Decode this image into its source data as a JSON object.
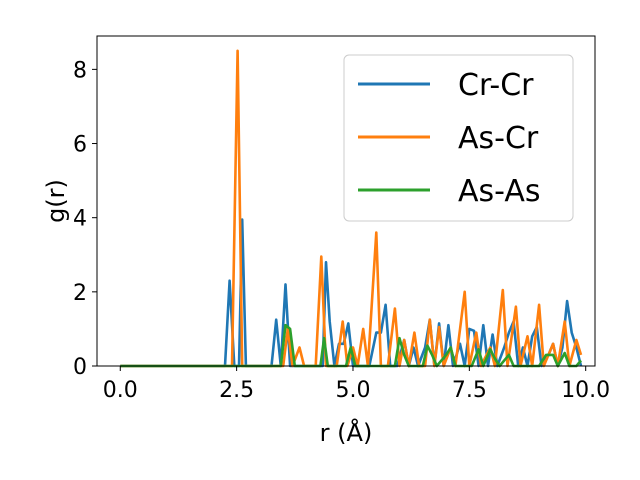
{
  "chart_data": {
    "type": "line",
    "xlabel": "r (Å)",
    "ylabel": "g(r)",
    "xlim": [
      -0.5,
      10.2
    ],
    "ylim": [
      0,
      8.9
    ],
    "xticks": [
      0.0,
      2.5,
      5.0,
      7.5,
      10.0
    ],
    "xtick_labels": [
      "0.0",
      "2.5",
      "5.0",
      "7.5",
      "10.0"
    ],
    "yticks": [
      0,
      2,
      4,
      6,
      8
    ],
    "ytick_labels": [
      "0",
      "2",
      "4",
      "6",
      "8"
    ],
    "grid": false,
    "legend_position": "top-right",
    "series": [
      {
        "name": "Cr-Cr",
        "color": "#1f77b4",
        "points": [
          [
            0.0,
            0
          ],
          [
            2.25,
            0
          ],
          [
            2.35,
            2.3
          ],
          [
            2.45,
            0
          ],
          [
            2.55,
            0
          ],
          [
            2.62,
            3.95
          ],
          [
            2.7,
            0
          ],
          [
            3.25,
            0
          ],
          [
            3.35,
            1.25
          ],
          [
            3.45,
            0
          ],
          [
            3.55,
            2.2
          ],
          [
            3.65,
            0
          ],
          [
            4.35,
            0
          ],
          [
            4.42,
            2.8
          ],
          [
            4.5,
            1.2
          ],
          [
            4.6,
            0
          ],
          [
            4.7,
            0.6
          ],
          [
            4.8,
            0.6
          ],
          [
            4.9,
            1.15
          ],
          [
            5.0,
            0
          ],
          [
            5.35,
            0
          ],
          [
            5.5,
            0.9
          ],
          [
            5.6,
            0.9
          ],
          [
            5.7,
            1.65
          ],
          [
            5.8,
            0
          ],
          [
            5.95,
            0
          ],
          [
            6.1,
            0.7
          ],
          [
            6.2,
            0
          ],
          [
            6.3,
            0.5
          ],
          [
            6.4,
            0
          ],
          [
            6.55,
            0.5
          ],
          [
            6.65,
            1.25
          ],
          [
            6.75,
            0
          ],
          [
            6.85,
            1.15
          ],
          [
            6.95,
            0
          ],
          [
            7.05,
            1.1
          ],
          [
            7.15,
            0
          ],
          [
            7.3,
            0.6
          ],
          [
            7.4,
            0
          ],
          [
            7.5,
            1.0
          ],
          [
            7.6,
            0.95
          ],
          [
            7.7,
            0
          ],
          [
            7.8,
            1.1
          ],
          [
            7.9,
            0
          ],
          [
            8.0,
            0.85
          ],
          [
            8.1,
            0
          ],
          [
            8.25,
            0.5
          ],
          [
            8.35,
            0.9
          ],
          [
            8.45,
            1.2
          ],
          [
            8.55,
            0
          ],
          [
            8.65,
            0.5
          ],
          [
            8.75,
            0
          ],
          [
            8.85,
            0.8
          ],
          [
            8.95,
            1.05
          ],
          [
            9.05,
            0
          ],
          [
            9.2,
            0.3
          ],
          [
            9.3,
            0.6
          ],
          [
            9.4,
            0
          ],
          [
            9.5,
            0.5
          ],
          [
            9.6,
            1.75
          ],
          [
            9.7,
            0.9
          ],
          [
            9.8,
            0.5
          ],
          [
            9.9,
            0
          ]
        ]
      },
      {
        "name": "As-Cr",
        "color": "#ff7f0e",
        "points": [
          [
            0.0,
            0
          ],
          [
            2.25,
            0
          ],
          [
            2.4,
            0
          ],
          [
            2.52,
            8.5
          ],
          [
            2.62,
            0
          ],
          [
            2.7,
            0
          ],
          [
            3.5,
            0
          ],
          [
            3.6,
            1.0
          ],
          [
            3.7,
            0
          ],
          [
            3.85,
            0.5
          ],
          [
            3.95,
            0
          ],
          [
            4.2,
            0
          ],
          [
            4.32,
            2.95
          ],
          [
            4.42,
            0
          ],
          [
            4.65,
            0
          ],
          [
            4.78,
            1.2
          ],
          [
            4.88,
            0
          ],
          [
            5.0,
            0.5
          ],
          [
            5.1,
            0
          ],
          [
            5.22,
            1.0
          ],
          [
            5.32,
            0
          ],
          [
            5.5,
            3.6
          ],
          [
            5.6,
            0
          ],
          [
            5.75,
            0
          ],
          [
            5.9,
            1.55
          ],
          [
            6.0,
            0
          ],
          [
            6.1,
            0.7
          ],
          [
            6.2,
            0
          ],
          [
            6.32,
            0.9
          ],
          [
            6.42,
            0
          ],
          [
            6.55,
            0
          ],
          [
            6.65,
            1.25
          ],
          [
            6.75,
            0
          ],
          [
            6.85,
            1.05
          ],
          [
            6.95,
            0
          ],
          [
            7.1,
            0.5
          ],
          [
            7.2,
            0
          ],
          [
            7.4,
            2.0
          ],
          [
            7.5,
            0
          ],
          [
            7.65,
            0.9
          ],
          [
            7.75,
            0
          ],
          [
            7.95,
            0.5
          ],
          [
            8.05,
            0
          ],
          [
            8.22,
            2.05
          ],
          [
            8.32,
            0
          ],
          [
            8.5,
            1.6
          ],
          [
            8.6,
            0
          ],
          [
            8.75,
            0.8
          ],
          [
            8.85,
            0
          ],
          [
            9.0,
            1.65
          ],
          [
            9.1,
            0
          ],
          [
            9.3,
            0.6
          ],
          [
            9.4,
            0
          ],
          [
            9.55,
            1.2
          ],
          [
            9.65,
            0
          ],
          [
            9.8,
            0.7
          ],
          [
            9.9,
            0.3
          ]
        ]
      },
      {
        "name": "As-As",
        "color": "#2ca02c",
        "points": [
          [
            0.0,
            0
          ],
          [
            3.45,
            0
          ],
          [
            3.55,
            1.1
          ],
          [
            3.65,
            1.0
          ],
          [
            3.75,
            0
          ],
          [
            4.3,
            0
          ],
          [
            4.38,
            0.75
          ],
          [
            4.46,
            0
          ],
          [
            4.85,
            0
          ],
          [
            4.95,
            0.5
          ],
          [
            5.05,
            0
          ],
          [
            5.9,
            0
          ],
          [
            6.0,
            0.75
          ],
          [
            6.1,
            0.3
          ],
          [
            6.2,
            0
          ],
          [
            6.5,
            0
          ],
          [
            6.6,
            0.55
          ],
          [
            6.7,
            0.3
          ],
          [
            6.8,
            0
          ],
          [
            7.0,
            0.3
          ],
          [
            7.1,
            0.5
          ],
          [
            7.2,
            0
          ],
          [
            7.55,
            0
          ],
          [
            7.7,
            0.45
          ],
          [
            7.8,
            0
          ],
          [
            7.95,
            0.45
          ],
          [
            8.05,
            0.2
          ],
          [
            8.15,
            0
          ],
          [
            8.35,
            0.3
          ],
          [
            8.45,
            0
          ],
          [
            9.0,
            0
          ],
          [
            9.15,
            0.3
          ],
          [
            9.3,
            0.3
          ],
          [
            9.4,
            0
          ],
          [
            9.55,
            0.35
          ],
          [
            9.65,
            0
          ],
          [
            9.8,
            0
          ],
          [
            9.9,
            0.15
          ]
        ]
      }
    ]
  }
}
